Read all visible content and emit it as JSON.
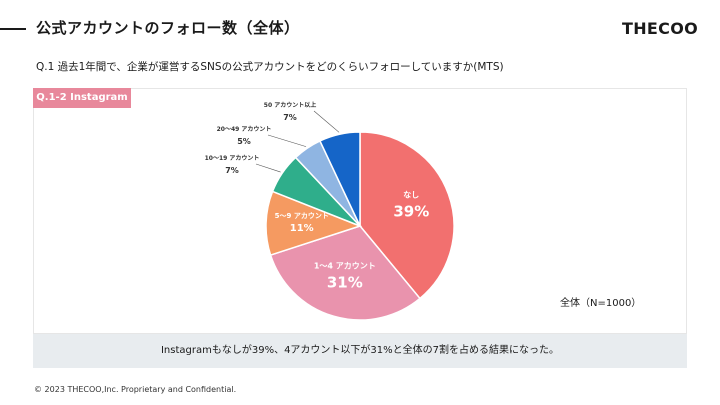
{
  "header": {
    "title": "公式アカウントのフォロー数（全体）",
    "brand": "THECOO"
  },
  "question": "Q.1 過去1年間で、企業が運営するSNSの公式アカウントをどのくらいフォローしていますか(MTS)",
  "panel": {
    "tag": "Q.1-2 Instagram",
    "sample_note": "全体（N=1000）"
  },
  "summary": "Instagramもなしが39%、4アカウント以下が31%と全体の7割を占める結果になった。",
  "footer": "© 2023 THECOO,Inc. Proprietary and Confidential.",
  "chart_data": {
    "type": "pie",
    "title": "",
    "start_angle_deg": 0,
    "direction": "clockwise",
    "slices": [
      {
        "label": "なし",
        "value": 39,
        "value_label": "39%",
        "color": "#f2706f",
        "label_placement": "inside"
      },
      {
        "label": "1～4 アカウント",
        "value": 31,
        "value_label": "31%",
        "color": "#e993ad",
        "label_placement": "inside"
      },
      {
        "label": "5～9 アカウント",
        "value": 11,
        "value_label": "11%",
        "color": "#f59a61",
        "label_placement": "inside"
      },
      {
        "label": "10～19 アカウント",
        "value": 7,
        "value_label": "7%",
        "color": "#2fae8b",
        "label_placement": "outside"
      },
      {
        "label": "20～49 アカウント",
        "value": 5,
        "value_label": "5%",
        "color": "#8fb5e2",
        "label_placement": "outside"
      },
      {
        "label": "50 アカウント以上",
        "value": 7,
        "value_label": "7%",
        "color": "#1565c8",
        "label_placement": "outside"
      }
    ]
  }
}
